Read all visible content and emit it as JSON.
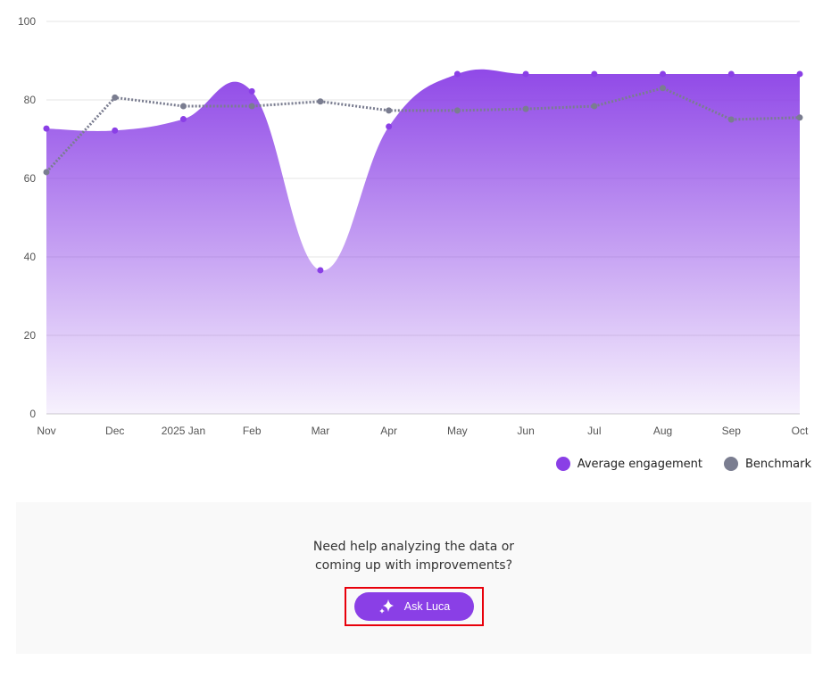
{
  "chart_data": {
    "type": "area",
    "categories": [
      "Nov",
      "Dec",
      "2025 Jan",
      "Feb",
      "Mar",
      "Apr",
      "May",
      "Jun",
      "Jul",
      "Aug",
      "Sep",
      "Oct"
    ],
    "ylim": [
      0,
      100
    ],
    "yticks": [
      0,
      20,
      40,
      60,
      80,
      100
    ],
    "grid": true,
    "legend_position": "bottom-right",
    "series": [
      {
        "name": "Average engagement",
        "style": "filled area, gradient",
        "color": "#8a3fe6",
        "values": [
          72.7,
          72.2,
          75.1,
          82.2,
          36.6,
          73.2,
          86.6,
          86.6,
          86.6,
          86.6,
          86.6,
          86.6
        ]
      },
      {
        "name": "Benchmark",
        "style": "dotted line",
        "color": "#7a7d90",
        "values": [
          61.6,
          80.6,
          78.4,
          78.4,
          79.6,
          77.3,
          77.3,
          77.7,
          78.4,
          83.0,
          75.0,
          75.5
        ]
      }
    ]
  },
  "help": {
    "line1": "Need help analyzing the data or",
    "line2": "coming up with improvements?",
    "button_label": "Ask Luca",
    "button_icon": "sparkles-icon"
  }
}
